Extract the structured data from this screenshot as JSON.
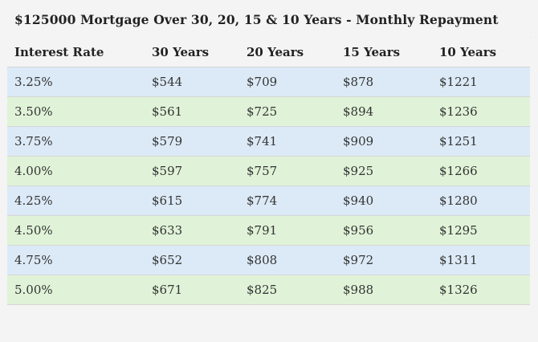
{
  "title": "$125000 Mortgage Over 30, 20, 15 & 10 Years - Monthly Repayment",
  "table": {
    "headers": [
      "Interest Rate",
      "30 Years",
      "20 Years",
      "15 Years",
      "10 Years"
    ],
    "rows": [
      [
        "3.25%",
        "$544",
        "$709",
        "$878",
        "$1221"
      ],
      [
        "3.50%",
        "$561",
        "$725",
        "$894",
        "$1236"
      ],
      [
        "3.75%",
        "$579",
        "$741",
        "$909",
        "$1251"
      ],
      [
        "4.00%",
        "$597",
        "$757",
        "$925",
        "$1266"
      ],
      [
        "4.25%",
        "$615",
        "$774",
        "$940",
        "$1280"
      ],
      [
        "4.50%",
        "$633",
        "$791",
        "$956",
        "$1295"
      ],
      [
        "4.75%",
        "$652",
        "$808",
        "$972",
        "$1311"
      ],
      [
        "5.00%",
        "$671",
        "$825",
        "$988",
        "$1326"
      ]
    ],
    "row_colors": [
      "#dceaf7",
      "#e0f3d8"
    ]
  }
}
